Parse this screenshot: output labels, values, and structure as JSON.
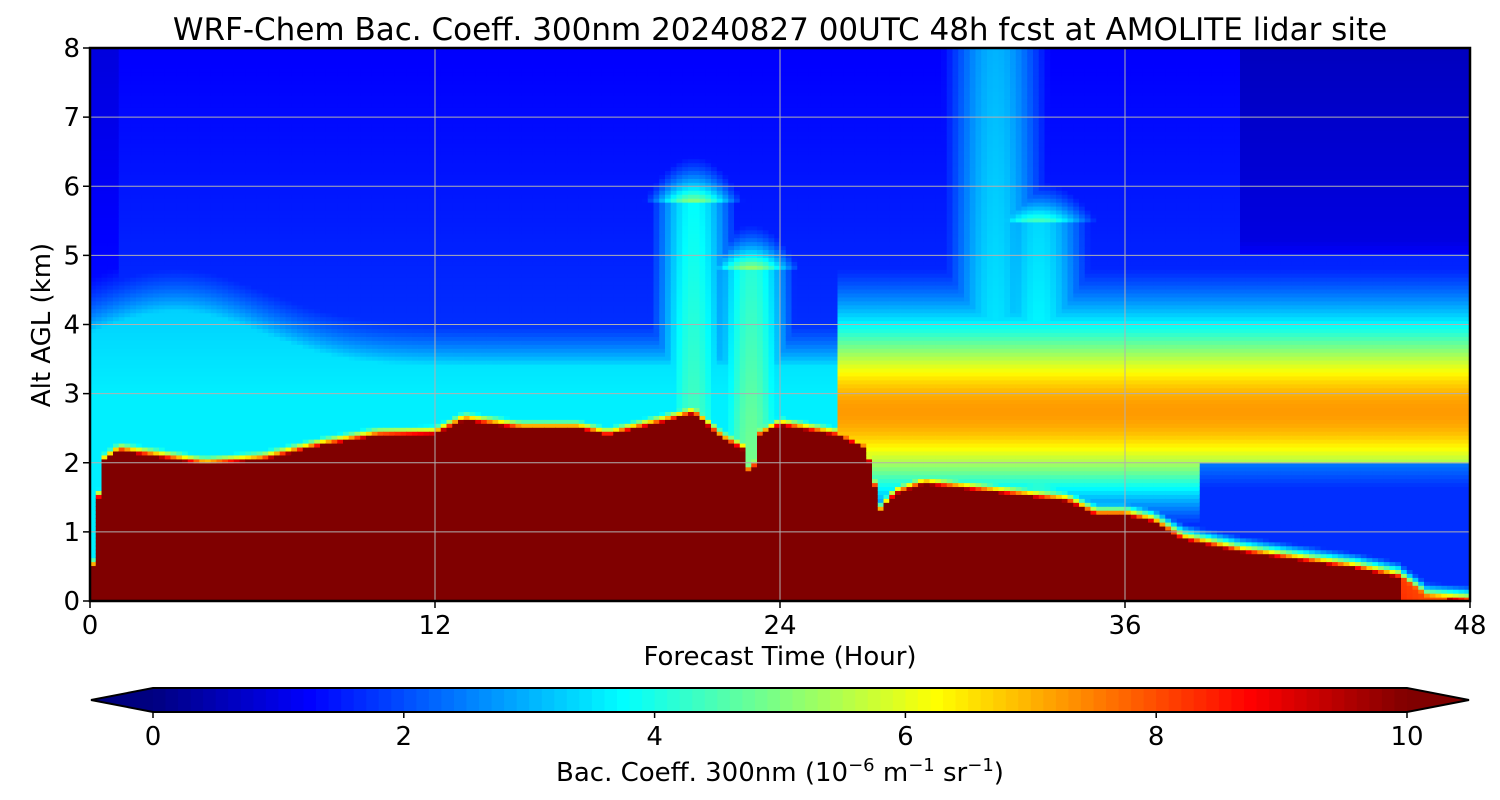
{
  "chart_data": {
    "type": "heatmap",
    "title": "WRF-Chem Bac. Coeff. 300nm  20240827 00UTC 48h fcst at AMOLITE lidar site",
    "xlabel": "Forecast Time (Hour)",
    "ylabel": "Alt AGL (km)",
    "xlim": [
      0,
      48
    ],
    "ylim": [
      0,
      8
    ],
    "xticks": [
      0,
      12,
      24,
      36,
      48
    ],
    "yticks": [
      0,
      1,
      2,
      3,
      4,
      5,
      6,
      7,
      8
    ],
    "grid": true,
    "colormap": "jet",
    "colorbar": {
      "label": "Bac. Coeff. 300nm  (10",
      "label_exp": "−6",
      "label_unit1": " m",
      "label_unit1_exp": "−1",
      "label_unit2": " sr",
      "label_unit2_exp": "−1",
      "label_close": ")",
      "range": [
        0,
        10
      ],
      "ticks": [
        0,
        2,
        4,
        6,
        8,
        10
      ],
      "extend": "both",
      "orientation": "horizontal"
    },
    "x_hours": [
      0,
      0.5,
      1,
      2,
      4,
      6,
      8,
      10,
      12,
      13,
      15,
      17,
      18,
      19,
      20,
      21,
      22,
      22.7,
      23,
      23.3,
      23.6,
      24,
      25,
      26,
      27,
      27.5,
      28,
      29,
      30,
      32,
      34,
      35,
      36,
      37,
      38,
      40,
      42,
      44,
      46,
      47,
      48
    ],
    "y_km": [
      0,
      0.5,
      1,
      1.5,
      2,
      2.3,
      2.6,
      3,
      3.5,
      4,
      4.5,
      5,
      5.5,
      6,
      6.5,
      7,
      7.5,
      8
    ],
    "values_note": "backscatter coefficient 300nm, 10^-6 m^-1 sr^-1",
    "aerosol_top_km_by_hour": [
      [
        0,
        0.0
      ],
      [
        0.4,
        2.0
      ],
      [
        1,
        2.18
      ],
      [
        4,
        1.98
      ],
      [
        6,
        2.05
      ],
      [
        8,
        2.25
      ],
      [
        10,
        2.4
      ],
      [
        12,
        2.42
      ],
      [
        13,
        2.62
      ],
      [
        15,
        2.5
      ],
      [
        17,
        2.5
      ],
      [
        18,
        2.4
      ],
      [
        20,
        2.6
      ],
      [
        21,
        2.72
      ],
      [
        22,
        2.35
      ],
      [
        22.7,
        2.2
      ],
      [
        23,
        1.72
      ],
      [
        23.3,
        2.4
      ],
      [
        24,
        2.55
      ],
      [
        26,
        2.4
      ],
      [
        27,
        2.2
      ],
      [
        27.5,
        1.3
      ],
      [
        28,
        1.55
      ],
      [
        29,
        1.7
      ],
      [
        32,
        1.55
      ],
      [
        34,
        1.45
      ],
      [
        35,
        1.25
      ],
      [
        36,
        1.25
      ],
      [
        37,
        1.15
      ],
      [
        38,
        0.9
      ],
      [
        40,
        0.72
      ],
      [
        42,
        0.6
      ],
      [
        44,
        0.48
      ],
      [
        45.5,
        0.35
      ],
      [
        46.5,
        0.05
      ],
      [
        48,
        0.0
      ]
    ],
    "upper_plumes": [
      {
        "center_hour": 21,
        "top_km": 5.8,
        "peak_value": 5.0
      },
      {
        "center_hour": 23,
        "top_km": 4.8,
        "peak_value": 5.5
      },
      {
        "center_hour": 31.5,
        "top_km": 8.0,
        "peak_value": 4.0
      },
      {
        "center_hour": 33,
        "top_km": 5.5,
        "peak_value": 4.5
      }
    ]
  }
}
